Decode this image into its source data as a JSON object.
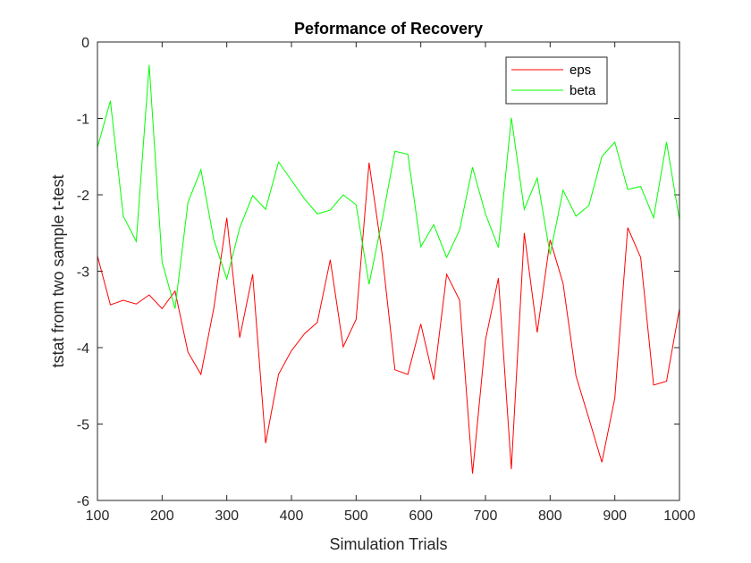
{
  "chart_data": {
    "type": "line",
    "title": "Peformance of Recovery",
    "xlabel": "Simulation Trials",
    "ylabel": "tstat from two sample t-test",
    "xlim": [
      100,
      1000
    ],
    "ylim": [
      -6,
      0
    ],
    "xticks": [
      100,
      200,
      300,
      400,
      500,
      600,
      700,
      800,
      900,
      1000
    ],
    "yticks": [
      0,
      -1,
      -2,
      -3,
      -4,
      -5,
      -6
    ],
    "grid": false,
    "legend_position": "top-right",
    "x": [
      100,
      120,
      140,
      160,
      180,
      200,
      220,
      240,
      260,
      280,
      300,
      320,
      340,
      360,
      380,
      400,
      420,
      440,
      460,
      480,
      500,
      520,
      540,
      560,
      580,
      600,
      620,
      640,
      660,
      680,
      700,
      720,
      740,
      760,
      780,
      800,
      820,
      840,
      860,
      880,
      900,
      920,
      940,
      960,
      980,
      1000
    ],
    "series": [
      {
        "name": "eps",
        "color": "#ff0000",
        "values": [
          -2.8,
          -3.44,
          -3.38,
          -3.43,
          -3.31,
          -3.49,
          -3.26,
          -4.06,
          -4.35,
          -3.48,
          -2.3,
          -3.87,
          -3.04,
          -5.25,
          -4.35,
          -4.04,
          -3.82,
          -3.67,
          -2.85,
          -3.99,
          -3.63,
          -1.58,
          -2.76,
          -4.29,
          -4.35,
          -3.69,
          -4.42,
          -3.04,
          -3.38,
          -5.65,
          -3.9,
          -3.09,
          -5.59,
          -2.5,
          -3.8,
          -2.59,
          -3.16,
          -4.37,
          -4.93,
          -5.5,
          -4.66,
          -2.43,
          -2.82,
          -4.49,
          -4.44,
          -3.49
        ]
      },
      {
        "name": "beta",
        "color": "#00ff00",
        "values": [
          -1.38,
          -0.77,
          -2.28,
          -2.61,
          -0.3,
          -2.88,
          -3.49,
          -2.1,
          -1.67,
          -2.59,
          -3.1,
          -2.43,
          -2.01,
          -2.19,
          -1.57,
          -1.81,
          -2.05,
          -2.25,
          -2.2,
          -2.0,
          -2.13,
          -3.17,
          -2.34,
          -1.43,
          -1.47,
          -2.68,
          -2.39,
          -2.82,
          -2.46,
          -1.64,
          -2.25,
          -2.69,
          -0.99,
          -2.19,
          -1.78,
          -2.78,
          -1.94,
          -2.28,
          -2.14,
          -1.5,
          -1.31,
          -1.93,
          -1.89,
          -2.3,
          -1.31,
          -2.33
        ]
      }
    ]
  }
}
